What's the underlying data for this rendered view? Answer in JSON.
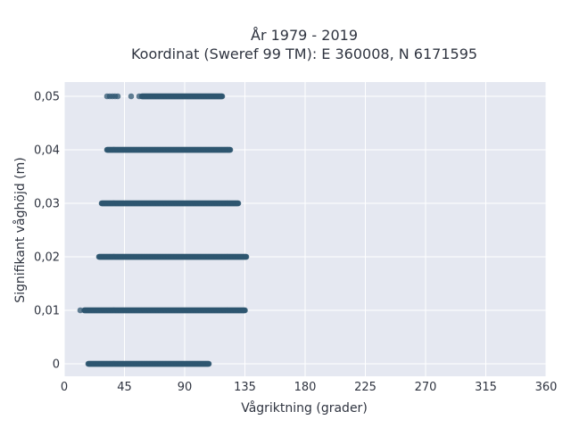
{
  "chart_data": {
    "type": "scatter",
    "title": "År 1979 - 2019",
    "subtitle": "Koordinat (Sweref 99 TM): E 360008, N 6171595",
    "xlabel": "Vågriktning (grader)",
    "ylabel": "Signifikant våghöjd (m)",
    "xlim": [
      0,
      360
    ],
    "ylim": [
      0,
      0.05
    ],
    "x_ticks": [
      0,
      45,
      90,
      135,
      180,
      225,
      270,
      315,
      360
    ],
    "x_tick_labels": [
      "0",
      "45",
      "90",
      "135",
      "180",
      "225",
      "270",
      "315",
      "360"
    ],
    "y_ticks": [
      0,
      0.01,
      0.02,
      0.03,
      0.04,
      0.05
    ],
    "y_tick_labels": [
      "0",
      "0,01",
      "0,02",
      "0,03",
      "0,04",
      "0,05"
    ],
    "grid": true,
    "colors": {
      "points": "#2e5670",
      "plot_bg": "#e5e8f1",
      "grid": "#ffffff"
    },
    "series": [
      {
        "points_by_level": [
          {
            "y": 0.0,
            "x_min": 18,
            "x_max": 108,
            "outliers": []
          },
          {
            "y": 0.01,
            "x_min": 15,
            "x_max": 135,
            "outliers": [
              12
            ]
          },
          {
            "y": 0.02,
            "x_min": 26,
            "x_max": 136,
            "outliers": []
          },
          {
            "y": 0.03,
            "x_min": 28,
            "x_max": 130,
            "outliers": []
          },
          {
            "y": 0.04,
            "x_min": 32,
            "x_max": 124,
            "outliers": []
          },
          {
            "y": 0.05,
            "x_min": 58,
            "x_max": 118,
            "outliers": [
              32,
              34,
              36,
              38,
              40,
              50,
              56
            ]
          }
        ]
      }
    ]
  }
}
